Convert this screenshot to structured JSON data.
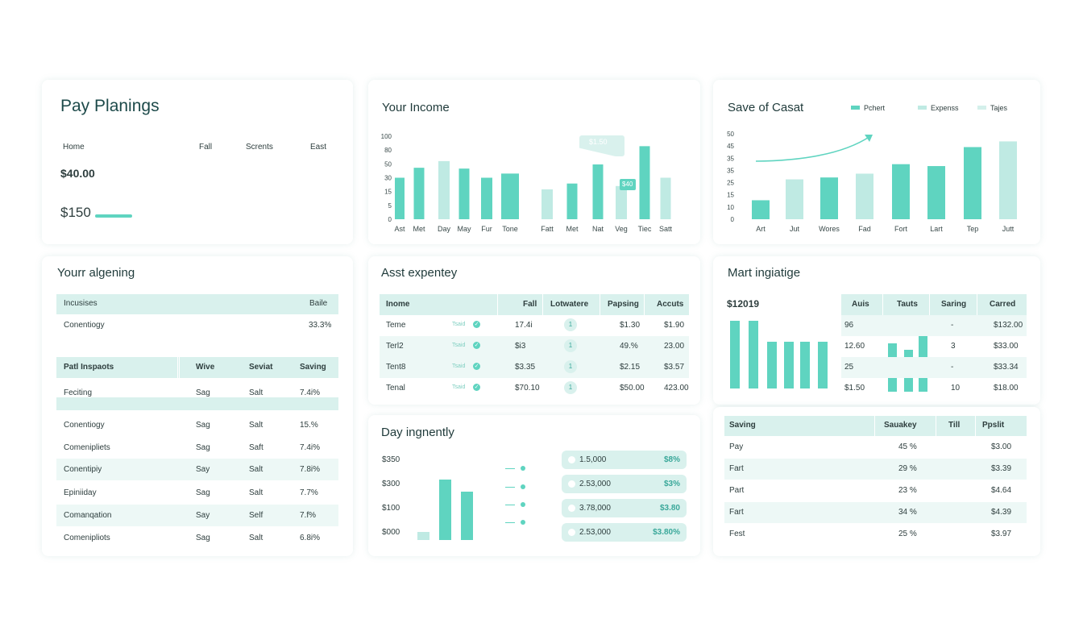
{
  "colors": {
    "accent": "#5fd4c0",
    "accent_light": "#bfeae3",
    "header_bg": "#d9f1ed",
    "stripe_bg": "#edf8f6"
  },
  "pay": {
    "title": "Pay Planings",
    "nav": [
      "Home",
      "Fall",
      "Scrents",
      "East"
    ],
    "amount1": "$40.00",
    "amount2": "$150"
  },
  "income": {
    "title": "Your Income",
    "tooltip": "$1.50",
    "bar_label": "$40",
    "chart_data": {
      "type": "bar",
      "y_ticks": [
        "100",
        "80",
        "50",
        "30",
        "15",
        "5",
        "0"
      ],
      "categories": [
        "Ast",
        "Met",
        "Day",
        "May",
        "Fur",
        "Tone",
        "Fatt",
        "Met",
        "Nat",
        "Veg",
        "Tiec",
        "Satt"
      ],
      "values": [
        50,
        62,
        70,
        61,
        50,
        55,
        36,
        43,
        66,
        40,
        88,
        50
      ],
      "highlight": [
        false,
        false,
        true,
        false,
        false,
        false,
        true,
        false,
        false,
        true,
        false,
        true
      ],
      "ylim": [
        0,
        100
      ]
    }
  },
  "save": {
    "title": "Save of Casat",
    "legend": [
      "Pchert",
      "Expenss",
      "Tajes"
    ],
    "chart_data": {
      "type": "bar",
      "y_ticks": [
        "50",
        "45",
        "35",
        "35",
        "25",
        "15",
        "10",
        "0"
      ],
      "categories": [
        "Art",
        "Jut",
        "Wores",
        "Fad",
        "Fort",
        "Lart",
        "Tep",
        "Jutt"
      ],
      "values": [
        10,
        21,
        22,
        24,
        29,
        28,
        38,
        41
      ],
      "highlight": [
        false,
        true,
        false,
        true,
        false,
        false,
        false,
        true
      ],
      "ylim": [
        0,
        45
      ]
    }
  },
  "aligning": {
    "title": "Yourr algening",
    "table1": {
      "headers": [
        "Incusises",
        "Baile"
      ],
      "rows": [
        [
          "Conentiogy",
          "33.3%"
        ]
      ]
    },
    "table2": {
      "headers": [
        "Patl Inspaots",
        "Wive",
        "Seviat",
        "Saving"
      ],
      "rows": [
        [
          "Feciting",
          "Sag",
          "Salt",
          "7.4i%"
        ],
        [
          "",
          "",
          "",
          ""
        ],
        [
          "Conentiogy",
          "Sag",
          "Salt",
          "15.%"
        ],
        [
          "Comenipliets",
          "Sag",
          "Saft",
          "7.4i%"
        ],
        [
          "Conentipiy",
          "Say",
          "Salt",
          "7.8i%"
        ],
        [
          "Epiniiday",
          "Sag",
          "Salt",
          "7.7%"
        ],
        [
          "Comanqation",
          "Say",
          "Self",
          "7.f%"
        ],
        [
          "Comenipliots",
          "Sag",
          "Salt",
          "6.8i%"
        ]
      ]
    }
  },
  "expense": {
    "title": "Asst expentey",
    "headers": [
      "Inome",
      "Fall",
      "Lotwatere",
      "Papsing",
      "Accuts"
    ],
    "rows": [
      {
        "name": "Teme",
        "tag": "Tsaid",
        "fall": "17.4i",
        "circle": "1",
        "pay": "$1.30",
        "acc": "$1.90"
      },
      {
        "name": "Terl2",
        "tag": "Tsaid",
        "fall": "$i3",
        "circle": "1",
        "pay": "49.%",
        "acc": "23.00"
      },
      {
        "name": "Tent8",
        "tag": "Tsaid",
        "fall": "$3.35",
        "circle": "1",
        "pay": "$2.15",
        "acc": "$3.57"
      },
      {
        "name": "Tenal",
        "tag": "Tsaid",
        "fall": "$70.10",
        "circle": "1",
        "pay": "$50.00",
        "acc": "423.00"
      }
    ]
  },
  "day": {
    "title": "Day ingnently",
    "y_labels": [
      "$350",
      "$300",
      "$100",
      "$000"
    ],
    "chart_data": {
      "type": "bar",
      "values": [
        10,
        75,
        60
      ],
      "highlight": [
        true,
        false,
        false
      ],
      "ylim": [
        0,
        80
      ]
    },
    "pills": [
      {
        "left": "1.5,000",
        "right": "$8%"
      },
      {
        "left": "2.53,000",
        "right": "$3%"
      },
      {
        "left": "3.78,000",
        "right": "$3.80"
      },
      {
        "left": "2.53,000",
        "right": "$3.80%"
      }
    ]
  },
  "mart": {
    "title": "Mart ingiatige",
    "amount": "$12019",
    "chart_data": {
      "type": "bar",
      "values": [
        84,
        84,
        58,
        58,
        58,
        58,
        60,
        52,
        89,
        21
      ],
      "ylim": [
        0,
        90
      ]
    },
    "table": {
      "headers": [
        "Auis",
        "Tauts",
        "Saring",
        "Carred"
      ],
      "rows": [
        [
          "96",
          "",
          "-",
          "$132.00"
        ],
        [
          "12.60",
          "",
          "3",
          "$33.00"
        ],
        [
          "25",
          "",
          "-",
          "$33.34"
        ],
        [
          "$1.50",
          "",
          "10",
          "$18.00"
        ]
      ]
    }
  },
  "saving": {
    "headers": [
      "Saving",
      "Sauakey",
      "Till",
      "Ppslit"
    ],
    "rows": [
      [
        "Pay",
        "45 %",
        "",
        "$3.00"
      ],
      [
        "Fart",
        "29 %",
        "",
        "$3.39"
      ],
      [
        "Part",
        "23 %",
        "",
        "$4.64"
      ],
      [
        "Fart",
        "34 %",
        "",
        "$4.39"
      ],
      [
        "Fest",
        "25 %",
        "",
        "$3.97"
      ]
    ]
  }
}
